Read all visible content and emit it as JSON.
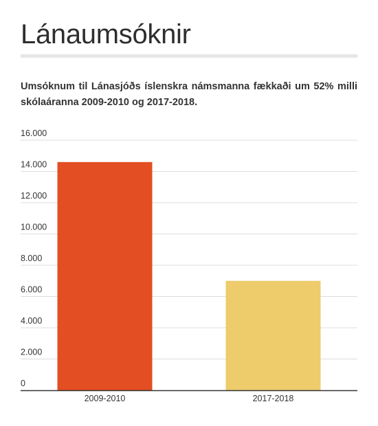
{
  "chart_data": {
    "type": "bar",
    "title": "Lánaumsóknir",
    "subtitle": "Umsóknum til Lánasjóðs íslenskra námsmanna fækkaði um 52% milli skólaáranna 2009-2010 og 2017-2018.",
    "categories": [
      "2009-2010",
      "2017-2018"
    ],
    "values": [
      14600,
      7000
    ],
    "colors": [
      "#e34e23",
      "#eecb6b"
    ],
    "ylim": [
      0,
      16000
    ],
    "yticks": [
      0,
      2000,
      4000,
      6000,
      8000,
      10000,
      12000,
      14000,
      16000
    ],
    "ytick_labels": [
      "0",
      "2.000",
      "4.000",
      "6.000",
      "8.000",
      "10.000",
      "12.000",
      "14.000",
      "16.000"
    ],
    "xlabel": "",
    "ylabel": "",
    "grid": true,
    "legend": "none"
  }
}
